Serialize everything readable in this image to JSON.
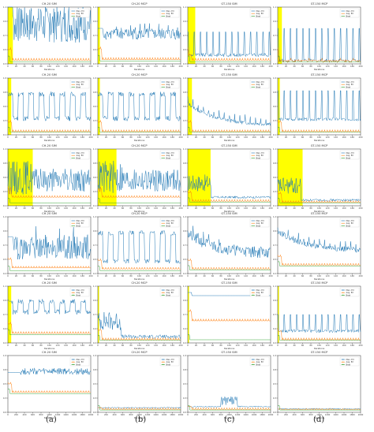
{
  "colors": {
    "max": "#1f77b4",
    "avg": "#ff7f0e",
    "best": "#2ca02c",
    "highlight": "#ffff00",
    "axis": "#333333"
  },
  "legend_labels": [
    "Max. Err",
    "Avg. Err",
    "Best"
  ],
  "captions": [
    "(a)",
    "(b)",
    "(c)",
    "(d)"
  ],
  "footer_text": "",
  "chart_data": [
    {
      "type": "line",
      "title": "CH-20 SIM",
      "xlabel": "Iterations",
      "ylim": [
        0.3,
        1.1
      ],
      "xlim": [
        0,
        200
      ],
      "highlight": [
        0,
        12
      ],
      "pattern": "spiky",
      "level": 0.85,
      "amp": 0.25,
      "avg": 0.35,
      "best": 0.33,
      "style": "line"
    },
    {
      "type": "line",
      "title": "CH-20 MCP",
      "xlabel": "Iterations",
      "ylim": [
        0.3,
        1.1
      ],
      "xlim": [
        0,
        200
      ],
      "highlight": [
        0,
        5
      ],
      "pattern": "spiky",
      "level": 0.72,
      "amp": 0.08,
      "avg": 0.36,
      "best": 0.34,
      "style": "line"
    },
    {
      "type": "line",
      "title": "GT-150 SIM",
      "xlabel": "Iterations",
      "ylim": [
        0.3,
        1.1
      ],
      "xlim": [
        0,
        200
      ],
      "highlight": [
        0,
        18
      ],
      "pattern": "periodic",
      "level": 0.5,
      "amp": 0.25,
      "avg": 0.35,
      "best": 0.33,
      "style": "line"
    },
    {
      "type": "line",
      "title": "GT-150 MCP",
      "xlabel": "Iterations",
      "ylim": [
        0.3,
        1.1
      ],
      "xlim": [
        0,
        200
      ],
      "highlight": [
        0,
        10
      ],
      "pattern": "periodic",
      "level": 0.45,
      "amp": 0.35,
      "avg": 0.35,
      "best": 0.33,
      "style": "line"
    },
    {
      "type": "line",
      "title": "CH-20 SIM",
      "xlabel": "Iterations",
      "ylim": [
        0.1,
        1.0
      ],
      "xlim": [
        0,
        200
      ],
      "highlight": [
        0,
        8
      ],
      "pattern": "blocky",
      "level": 0.5,
      "amp": 0.35,
      "avg": 0.15,
      "best": 0.14,
      "style": "line"
    },
    {
      "type": "line",
      "title": "CH-20 MCP",
      "xlabel": "Iterations",
      "ylim": [
        0.1,
        1.0
      ],
      "xlim": [
        0,
        200
      ],
      "highlight": [
        0,
        5
      ],
      "pattern": "blocky",
      "level": 0.5,
      "amp": 0.35,
      "avg": 0.15,
      "best": 0.14,
      "style": "line"
    },
    {
      "type": "line",
      "title": "GT-150 SIM",
      "xlabel": "Iterations",
      "ylim": [
        0.1,
        1.0
      ],
      "xlim": [
        0,
        200
      ],
      "highlight": [
        0,
        10
      ],
      "pattern": "decay",
      "level": 0.25,
      "amp": 0.03,
      "avg": 0.15,
      "best": 0.14,
      "style": "line"
    },
    {
      "type": "line",
      "title": "GT-150 MCP",
      "xlabel": "Iterations",
      "ylim": [
        0.1,
        1.0
      ],
      "xlim": [
        0,
        200
      ],
      "highlight": [
        0,
        5
      ],
      "pattern": "periodic",
      "level": 0.45,
      "amp": 0.35,
      "avg": 0.15,
      "best": 0.14,
      "style": "line"
    },
    {
      "type": "line",
      "title": "CH-20 SIM",
      "xlabel": "Iterations",
      "ylim": [
        0.1,
        1.1
      ],
      "xlim": [
        0,
        200
      ],
      "highlight": [
        0,
        60
      ],
      "pattern": "noisy",
      "level": 0.6,
      "amp": 0.2,
      "avg": 0.25,
      "best": 0.15,
      "style": "line"
    },
    {
      "type": "line",
      "title": "CH-20 MCP",
      "xlabel": "Iterations",
      "ylim": [
        0.1,
        1.1
      ],
      "xlim": [
        0,
        200
      ],
      "highlight": [
        0,
        45
      ],
      "pattern": "noisy",
      "level": 0.6,
      "amp": 0.2,
      "avg": 0.25,
      "best": 0.15,
      "style": "line"
    },
    {
      "type": "line",
      "title": "GT-150 SIM",
      "xlabel": "Iterations",
      "ylim": [
        0.1,
        1.1
      ],
      "xlim": [
        0,
        200
      ],
      "highlight": [
        0,
        55
      ],
      "pattern": "flat",
      "level": 0.25,
      "amp": 0.02,
      "avg": 0.18,
      "best": 0.16,
      "style": "line"
    },
    {
      "type": "line",
      "title": "GT-150 MCP",
      "xlabel": "Iterations",
      "ylim": [
        0.1,
        1.1
      ],
      "xlim": [
        0,
        200
      ],
      "highlight": [
        0,
        60
      ],
      "pattern": "flat",
      "level": 0.2,
      "amp": 0.02,
      "avg": 0.16,
      "best": 0.15,
      "style": "line"
    },
    {
      "type": "line",
      "title": "CH-20 SIM",
      "xlabel": "Iterations",
      "ylim": [
        0.2,
        1.2
      ],
      "xlim": [
        0,
        200
      ],
      "highlight": null,
      "pattern": "spiky",
      "level": 0.65,
      "amp": 0.2,
      "avg": 0.3,
      "best": 0.25,
      "style": "line"
    },
    {
      "type": "line",
      "title": "CH-20 MCP",
      "xlabel": "Iterations",
      "ylim": [
        0.2,
        1.2
      ],
      "xlim": [
        0,
        200
      ],
      "highlight": null,
      "pattern": "blocky",
      "level": 0.6,
      "amp": 0.45,
      "avg": 0.28,
      "best": 0.25,
      "style": "line"
    },
    {
      "type": "line",
      "title": "GT-150 SIM",
      "xlabel": "Iterations",
      "ylim": [
        0.2,
        1.2
      ],
      "xlim": [
        0,
        200
      ],
      "highlight": null,
      "pattern": "decay",
      "level": 0.55,
      "amp": 0.1,
      "avg": 0.28,
      "best": 0.26,
      "style": "line"
    },
    {
      "type": "line",
      "title": "GT-150 MCP",
      "xlabel": "Iterations",
      "ylim": [
        0.2,
        1.2
      ],
      "xlim": [
        0,
        200
      ],
      "highlight": null,
      "pattern": "decay",
      "level": 0.6,
      "amp": 0.05,
      "avg": 0.35,
      "best": 0.33,
      "style": "line"
    },
    {
      "type": "line",
      "title": "CH-20 SIM",
      "xlabel": "Iterations",
      "ylim": [
        0.2,
        1.1
      ],
      "xlim": [
        0,
        200
      ],
      "highlight": [
        0,
        8
      ],
      "pattern": "blocky",
      "level": 0.75,
      "amp": 0.15,
      "avg": 0.35,
      "best": 0.33,
      "style": "marker"
    },
    {
      "type": "line",
      "title": "CH-20 MCP",
      "xlabel": "Iterations",
      "ylim": [
        0.2,
        1.1
      ],
      "xlim": [
        0,
        200
      ],
      "highlight": [
        0,
        3
      ],
      "pattern": "flat",
      "level": 0.3,
      "amp": 0.03,
      "avg": 0.25,
      "best": 0.24,
      "style": "marker"
    },
    {
      "type": "line",
      "title": "GT-150 SIM",
      "xlabel": "Iterations",
      "ylim": [
        0.2,
        1.1
      ],
      "xlim": [
        0,
        200
      ],
      "highlight": [
        0,
        3
      ],
      "pattern": "stepdown",
      "level": 0.95,
      "amp": 0.02,
      "avg": 0.55,
      "best": 0.25,
      "style": "marker"
    },
    {
      "type": "line",
      "title": "GT-150 MCP",
      "xlabel": "Iterations",
      "ylim": [
        0.2,
        1.1
      ],
      "xlim": [
        0,
        200
      ],
      "highlight": [
        0,
        3
      ],
      "pattern": "periodic",
      "level": 0.45,
      "amp": 0.2,
      "avg": 0.25,
      "best": 0.24,
      "style": "marker"
    },
    {
      "type": "line",
      "title": "CH-20 SIM",
      "xlabel": "Iterations",
      "ylim": [
        0.0,
        1.0
      ],
      "xlim": [
        0,
        2000
      ],
      "highlight": null,
      "pattern": "bandhigh",
      "level": 0.72,
      "amp": 0.05,
      "avg": 0.35,
      "best": 0.33,
      "style": "marker"
    },
    {
      "type": "line",
      "title": "CH-20 MCP",
      "xlabel": "Iterations",
      "ylim": [
        0.0,
        1.0
      ],
      "xlim": [
        0,
        2000
      ],
      "highlight": null,
      "pattern": "flatlow",
      "level": 0.08,
      "amp": 0.02,
      "avg": 0.05,
      "best": 0.04,
      "style": "marker"
    },
    {
      "type": "line",
      "title": "GT-150 SIM",
      "xlabel": "Iterations",
      "ylim": [
        0.0,
        1.0
      ],
      "xlim": [
        0,
        2000
      ],
      "highlight": null,
      "pattern": "bandmid",
      "level": 0.2,
      "amp": 0.08,
      "avg": 0.05,
      "best": 0.04,
      "style": "marker"
    },
    {
      "type": "line",
      "title": "GT-150 MCP",
      "xlabel": "Iterations",
      "ylim": [
        0.0,
        1.0
      ],
      "xlim": [
        0,
        2000
      ],
      "highlight": null,
      "pattern": "flatlow",
      "level": 0.06,
      "amp": 0.02,
      "avg": 0.05,
      "best": 0.04,
      "style": "marker"
    }
  ]
}
